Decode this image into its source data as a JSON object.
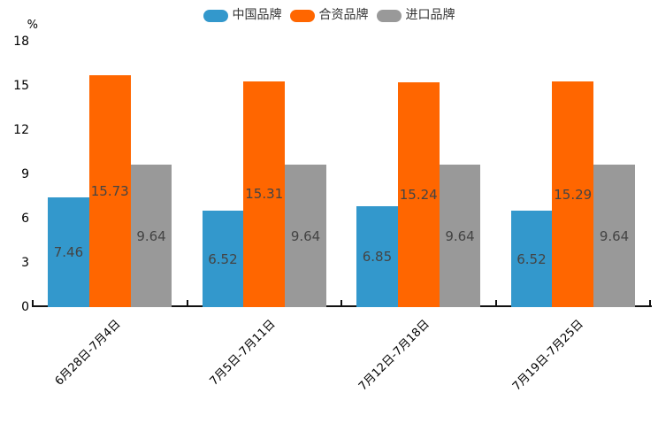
{
  "legend": {
    "items": [
      {
        "label": "中国品牌",
        "color": "#3398CC"
      },
      {
        "label": "合资品牌",
        "color": "#FF6600"
      },
      {
        "label": "进口品牌",
        "color": "#999999"
      }
    ]
  },
  "chart_data": {
    "type": "bar",
    "title": "",
    "ylabel": "%",
    "xlabel": "",
    "categories": [
      "6月28日-7月4日",
      "7月5日-7月11日",
      "7月12日-7月18日",
      "7月19日-7月25日"
    ],
    "series": [
      {
        "name": "中国品牌",
        "color": "#3398CC",
        "values": [
          7.46,
          6.52,
          6.85,
          6.52
        ]
      },
      {
        "name": "合资品牌",
        "color": "#FF6600",
        "values": [
          15.73,
          15.31,
          15.24,
          15.29
        ]
      },
      {
        "name": "进口品牌",
        "color": "#999999",
        "values": [
          9.64,
          9.64,
          9.64,
          9.64
        ]
      }
    ],
    "value_label_position": "inside-center",
    "yticks": [
      0,
      3,
      6,
      9,
      12,
      15,
      18
    ],
    "ylim": [
      0,
      18
    ],
    "grid": false,
    "legend_position": "top-center",
    "x_label_rotation_deg": -45
  },
  "colors": {
    "axis": "#111111",
    "value_label": "#444444",
    "tick_label": "#000000",
    "background": "#ffffff"
  }
}
